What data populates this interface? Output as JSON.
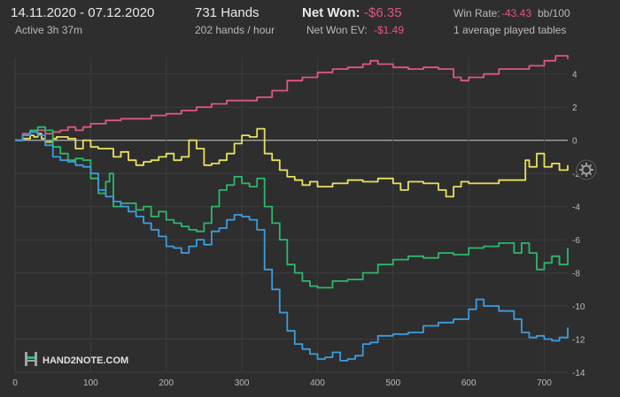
{
  "header": {
    "date_range": "14.11.2020 - 07.12.2020",
    "active": "Active 3h 37m",
    "hands": "731 Hands",
    "hands_per_hour": "202 hands / hour",
    "net_won_label": "Net Won:",
    "net_won_value": "-$6.35",
    "net_won_ev_label": "Net Won  EV:",
    "net_won_ev_value": "-$1.49",
    "win_rate_label": "Win Rate:",
    "win_rate_value": "-43.43",
    "win_rate_unit": "bb/100",
    "tables": "1 average played tables"
  },
  "logo": {
    "text": "HAND2NOTE.COM"
  },
  "icons": {
    "settings": "gear-icon"
  },
  "colors": {
    "background": "#2e2e2e",
    "grid": "#3d3d3d",
    "zero_line": "#bdbdbd",
    "tick": "#b9b9b9",
    "negative_text": "#e0577f"
  },
  "chart_data": {
    "type": "line",
    "xlim": [
      0,
      731
    ],
    "ylim": [
      -14,
      5
    ],
    "x_ticks": [
      0,
      100,
      200,
      300,
      400,
      500,
      600,
      700
    ],
    "y_ticks": [
      4,
      2,
      0,
      -2,
      -4,
      -6,
      -8,
      -10,
      -12,
      -14
    ],
    "grid": true,
    "legend": "none",
    "series": [
      {
        "color": "#e0577f",
        "points": [
          [
            0,
            0
          ],
          [
            10,
            0.4
          ],
          [
            20,
            0.5
          ],
          [
            30,
            0.6
          ],
          [
            40,
            0.4
          ],
          [
            50,
            0.5
          ],
          [
            60,
            0.6
          ],
          [
            70,
            0.8
          ],
          [
            80,
            0.6
          ],
          [
            90,
            0.8
          ],
          [
            100,
            1.0
          ],
          [
            120,
            1.2
          ],
          [
            140,
            1.3
          ],
          [
            160,
            1.3
          ],
          [
            180,
            1.5
          ],
          [
            200,
            1.6
          ],
          [
            220,
            1.8
          ],
          [
            240,
            2.0
          ],
          [
            260,
            2.2
          ],
          [
            280,
            2.4
          ],
          [
            300,
            2.4
          ],
          [
            320,
            2.6
          ],
          [
            340,
            3.0
          ],
          [
            360,
            3.6
          ],
          [
            380,
            3.8
          ],
          [
            400,
            4.1
          ],
          [
            420,
            4.3
          ],
          [
            440,
            4.4
          ],
          [
            460,
            4.6
          ],
          [
            470,
            4.8
          ],
          [
            480,
            4.6
          ],
          [
            500,
            4.4
          ],
          [
            520,
            4.3
          ],
          [
            540,
            4.4
          ],
          [
            560,
            4.3
          ],
          [
            580,
            3.8
          ],
          [
            590,
            3.6
          ],
          [
            600,
            3.8
          ],
          [
            620,
            4.0
          ],
          [
            640,
            4.3
          ],
          [
            660,
            4.3
          ],
          [
            680,
            4.5
          ],
          [
            700,
            4.8
          ],
          [
            715,
            5.1
          ],
          [
            731,
            4.9
          ]
        ]
      },
      {
        "color": "#e8e060",
        "points": [
          [
            0,
            0
          ],
          [
            10,
            0.1
          ],
          [
            20,
            0.3
          ],
          [
            25,
            0.2
          ],
          [
            30,
            0.4
          ],
          [
            35,
            0.1
          ],
          [
            40,
            -0.1
          ],
          [
            45,
            -0.1
          ],
          [
            50,
            0.1
          ],
          [
            55,
            0.2
          ],
          [
            70,
            0.1
          ],
          [
            80,
            -0.5
          ],
          [
            90,
            0
          ],
          [
            100,
            -0.4
          ],
          [
            110,
            -0.5
          ],
          [
            120,
            -0.5
          ],
          [
            130,
            -1.0
          ],
          [
            140,
            -0.7
          ],
          [
            150,
            -1.2
          ],
          [
            160,
            -1.5
          ],
          [
            170,
            -1.3
          ],
          [
            180,
            -1.2
          ],
          [
            190,
            -1.0
          ],
          [
            200,
            -0.8
          ],
          [
            210,
            -1.2
          ],
          [
            220,
            -1.0
          ],
          [
            230,
            0
          ],
          [
            240,
            -0.5
          ],
          [
            250,
            -1.5
          ],
          [
            260,
            -1.4
          ],
          [
            270,
            -1.2
          ],
          [
            280,
            -0.8
          ],
          [
            290,
            -0.2
          ],
          [
            300,
            0.3
          ],
          [
            310,
            0.2
          ],
          [
            320,
            0.7
          ],
          [
            330,
            -0.8
          ],
          [
            340,
            -1.2
          ],
          [
            350,
            -1.8
          ],
          [
            360,
            -2.2
          ],
          [
            370,
            -2.4
          ],
          [
            380,
            -2.7
          ],
          [
            390,
            -2.5
          ],
          [
            400,
            -2.8
          ],
          [
            420,
            -2.6
          ],
          [
            440,
            -2.4
          ],
          [
            460,
            -2.5
          ],
          [
            480,
            -2.3
          ],
          [
            500,
            -2.6
          ],
          [
            510,
            -3.0
          ],
          [
            520,
            -2.5
          ],
          [
            540,
            -2.6
          ],
          [
            560,
            -3.0
          ],
          [
            570,
            -3.4
          ],
          [
            580,
            -2.8
          ],
          [
            590,
            -2.5
          ],
          [
            600,
            -2.6
          ],
          [
            620,
            -2.6
          ],
          [
            640,
            -2.4
          ],
          [
            660,
            -2.4
          ],
          [
            675,
            -1.2
          ],
          [
            680,
            -1.6
          ],
          [
            690,
            -0.8
          ],
          [
            700,
            -1.6
          ],
          [
            710,
            -1.4
          ],
          [
            720,
            -1.8
          ],
          [
            731,
            -1.5
          ]
        ]
      },
      {
        "color": "#2cb86a",
        "points": [
          [
            0,
            0
          ],
          [
            10,
            0.3
          ],
          [
            20,
            0.6
          ],
          [
            30,
            0.8
          ],
          [
            40,
            0.6
          ],
          [
            50,
            -0.4
          ],
          [
            60,
            -0.8
          ],
          [
            70,
            -1.2
          ],
          [
            80,
            -1.1
          ],
          [
            90,
            -1.2
          ],
          [
            100,
            -2.3
          ],
          [
            110,
            -3.2
          ],
          [
            120,
            -2.5
          ],
          [
            125,
            -2.0
          ],
          [
            130,
            -4.0
          ],
          [
            140,
            -3.8
          ],
          [
            160,
            -4.2
          ],
          [
            170,
            -4.0
          ],
          [
            180,
            -4.6
          ],
          [
            190,
            -4.3
          ],
          [
            200,
            -4.8
          ],
          [
            210,
            -5.0
          ],
          [
            220,
            -5.2
          ],
          [
            230,
            -5.4
          ],
          [
            240,
            -5.5
          ],
          [
            250,
            -5.0
          ],
          [
            260,
            -4.0
          ],
          [
            270,
            -3.0
          ],
          [
            280,
            -2.7
          ],
          [
            290,
            -2.2
          ],
          [
            300,
            -2.6
          ],
          [
            310,
            -2.8
          ],
          [
            320,
            -2.3
          ],
          [
            330,
            -4.0
          ],
          [
            340,
            -5.0
          ],
          [
            350,
            -6.0
          ],
          [
            360,
            -7.5
          ],
          [
            370,
            -8.0
          ],
          [
            380,
            -8.5
          ],
          [
            390,
            -8.8
          ],
          [
            400,
            -8.9
          ],
          [
            420,
            -8.5
          ],
          [
            440,
            -8.4
          ],
          [
            460,
            -8.0
          ],
          [
            480,
            -7.5
          ],
          [
            500,
            -7.2
          ],
          [
            520,
            -7.0
          ],
          [
            540,
            -7.1
          ],
          [
            560,
            -6.8
          ],
          [
            580,
            -6.9
          ],
          [
            600,
            -6.5
          ],
          [
            620,
            -6.4
          ],
          [
            640,
            -6.2
          ],
          [
            660,
            -6.8
          ],
          [
            670,
            -6.2
          ],
          [
            680,
            -6.8
          ],
          [
            690,
            -7.8
          ],
          [
            700,
            -7.4
          ],
          [
            710,
            -7.0
          ],
          [
            720,
            -7.5
          ],
          [
            731,
            -6.5
          ]
        ]
      },
      {
        "color": "#3a9de0",
        "points": [
          [
            0,
            0
          ],
          [
            10,
            0.3
          ],
          [
            20,
            0.5
          ],
          [
            30,
            0.3
          ],
          [
            40,
            -0.3
          ],
          [
            50,
            -1.0
          ],
          [
            60,
            -1.2
          ],
          [
            70,
            -1.3
          ],
          [
            80,
            -1.5
          ],
          [
            90,
            -1.6
          ],
          [
            100,
            -2.0
          ],
          [
            110,
            -3.0
          ],
          [
            120,
            -3.4
          ],
          [
            130,
            -3.7
          ],
          [
            140,
            -4.0
          ],
          [
            150,
            -4.3
          ],
          [
            160,
            -4.6
          ],
          [
            170,
            -5.0
          ],
          [
            180,
            -5.4
          ],
          [
            190,
            -5.8
          ],
          [
            200,
            -6.4
          ],
          [
            210,
            -6.5
          ],
          [
            220,
            -6.8
          ],
          [
            230,
            -6.4
          ],
          [
            240,
            -6.0
          ],
          [
            250,
            -6.3
          ],
          [
            260,
            -5.5
          ],
          [
            270,
            -5.3
          ],
          [
            280,
            -4.8
          ],
          [
            290,
            -4.5
          ],
          [
            300,
            -4.6
          ],
          [
            310,
            -4.8
          ],
          [
            320,
            -5.4
          ],
          [
            330,
            -7.8
          ],
          [
            340,
            -9.0
          ],
          [
            350,
            -10.4
          ],
          [
            360,
            -11.5
          ],
          [
            370,
            -12.3
          ],
          [
            380,
            -12.6
          ],
          [
            390,
            -12.9
          ],
          [
            400,
            -13.2
          ],
          [
            410,
            -13.1
          ],
          [
            420,
            -12.8
          ],
          [
            430,
            -13.3
          ],
          [
            440,
            -13.2
          ],
          [
            450,
            -13.0
          ],
          [
            460,
            -12.3
          ],
          [
            470,
            -12.2
          ],
          [
            480,
            -11.8
          ],
          [
            500,
            -11.7
          ],
          [
            520,
            -11.6
          ],
          [
            540,
            -11.2
          ],
          [
            560,
            -11.0
          ],
          [
            580,
            -10.8
          ],
          [
            600,
            -10.2
          ],
          [
            610,
            -9.6
          ],
          [
            620,
            -10.0
          ],
          [
            640,
            -10.3
          ],
          [
            660,
            -10.8
          ],
          [
            670,
            -11.6
          ],
          [
            680,
            -11.9
          ],
          [
            690,
            -11.8
          ],
          [
            700,
            -12.0
          ],
          [
            710,
            -12.1
          ],
          [
            720,
            -11.9
          ],
          [
            731,
            -11.3
          ]
        ]
      }
    ]
  }
}
